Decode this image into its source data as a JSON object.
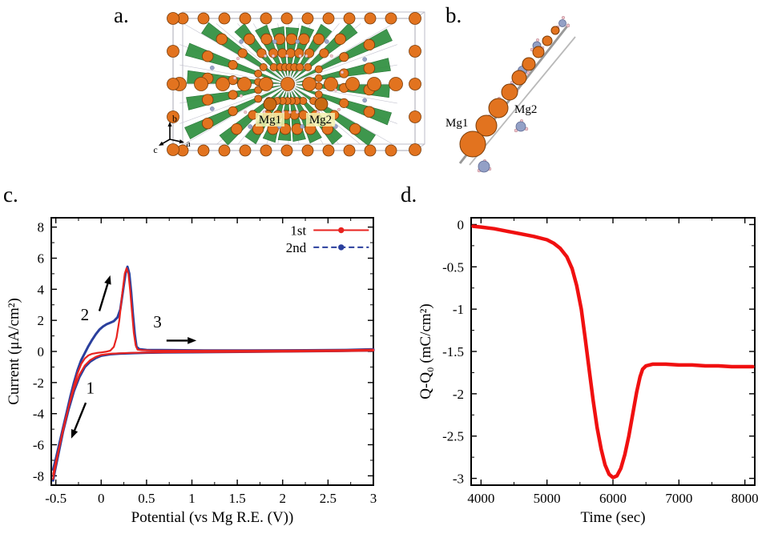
{
  "panels": {
    "a": {
      "label": "a.",
      "mg1": "Mg1",
      "mg2": "Mg2",
      "axes": {
        "b": "b",
        "c": "c",
        "a": "a"
      }
    },
    "b": {
      "label": "b.",
      "mg1": "Mg1",
      "mg2": "Mg2"
    },
    "c": {
      "label": "c."
    },
    "d": {
      "label": "d."
    }
  },
  "colors": {
    "first_cycle": "#e8231f",
    "second_cycle": "#2a3f9d",
    "charge_curve": "#f01010",
    "mg_sphere": "#e2731f",
    "polyhedra": "#2e8f3e"
  },
  "chart_data": [
    {
      "id": "cv",
      "type": "line",
      "title": "",
      "xlabel": "Potential (vs  Mg R.E. (V))",
      "ylabel": "Current (μA/cm²)",
      "xlim": [
        -0.55,
        3.0
      ],
      "ylim": [
        -8.6,
        8.6
      ],
      "xticks": {
        "values": [
          -0.5,
          0,
          0.5,
          1,
          1.5,
          2,
          2.5,
          3
        ],
        "labels": [
          "-0.5",
          "0",
          "0.5",
          "1",
          "1.5",
          "2",
          "2.5",
          "3"
        ]
      },
      "yticks": {
        "values": [
          -8,
          -6,
          -4,
          -2,
          0,
          2,
          4,
          6,
          8
        ],
        "labels": [
          "-8",
          "-6",
          "-4",
          "-2",
          "0",
          "2",
          "4",
          "6",
          "8"
        ]
      },
      "legend": [
        {
          "label": "1st",
          "color": "#e8231f",
          "dash": ""
        },
        {
          "label": "2nd",
          "color": "#2a3f9d",
          "dash": "7,4"
        }
      ],
      "annotations": [
        {
          "text": "1",
          "x": -0.12,
          "y": -2.7
        },
        {
          "text": "2",
          "x": -0.18,
          "y": 2.0
        },
        {
          "text": "3",
          "x": 0.62,
          "y": 1.55
        }
      ],
      "arrows": [
        {
          "x1": -0.17,
          "y1": -3.3,
          "x2": -0.33,
          "y2": -5.6
        },
        {
          "x1": -0.02,
          "y1": 2.6,
          "x2": 0.1,
          "y2": 4.9
        },
        {
          "x1": 0.72,
          "y1": 0.7,
          "x2": 1.05,
          "y2": 0.7
        }
      ],
      "series": [
        {
          "name": "2nd",
          "color": "#2a3f9d",
          "width": 3.0,
          "points": [
            [
              -0.53,
              -7.6
            ],
            [
              -0.5,
              -6.9
            ],
            [
              -0.46,
              -5.9
            ],
            [
              -0.42,
              -4.9
            ],
            [
              -0.38,
              -3.9
            ],
            [
              -0.34,
              -2.9
            ],
            [
              -0.3,
              -2.0
            ],
            [
              -0.26,
              -1.2
            ],
            [
              -0.22,
              -0.55
            ],
            [
              -0.18,
              -0.1
            ],
            [
              -0.14,
              0.35
            ],
            [
              -0.1,
              0.75
            ],
            [
              -0.06,
              1.1
            ],
            [
              -0.02,
              1.4
            ],
            [
              0.02,
              1.6
            ],
            [
              0.06,
              1.75
            ],
            [
              0.1,
              1.85
            ],
            [
              0.14,
              1.95
            ],
            [
              0.18,
              2.2
            ],
            [
              0.21,
              2.7
            ],
            [
              0.24,
              3.9
            ],
            [
              0.27,
              5.1
            ],
            [
              0.29,
              5.45
            ],
            [
              0.31,
              5.0
            ],
            [
              0.33,
              3.8
            ],
            [
              0.35,
              2.4
            ],
            [
              0.37,
              1.1
            ],
            [
              0.39,
              0.3
            ],
            [
              0.42,
              0.15
            ],
            [
              0.5,
              0.1
            ],
            [
              0.8,
              0.08
            ],
            [
              1.2,
              0.06
            ],
            [
              1.6,
              0.06
            ],
            [
              2.0,
              0.07
            ],
            [
              2.4,
              0.08
            ],
            [
              2.7,
              0.1
            ],
            [
              3.0,
              0.14
            ],
            [
              3.0,
              0.06
            ],
            [
              2.6,
              0.03
            ],
            [
              2.2,
              0.01
            ],
            [
              1.8,
              -0.01
            ],
            [
              1.4,
              -0.03
            ],
            [
              1.0,
              -0.05
            ],
            [
              0.7,
              -0.06
            ],
            [
              0.5,
              -0.08
            ],
            [
              0.35,
              -0.11
            ],
            [
              0.2,
              -0.14
            ],
            [
              0.1,
              -0.18
            ],
            [
              0.0,
              -0.28
            ],
            [
              -0.06,
              -0.42
            ],
            [
              -0.12,
              -0.65
            ],
            [
              -0.18,
              -1.0
            ],
            [
              -0.24,
              -1.65
            ],
            [
              -0.3,
              -2.55
            ],
            [
              -0.36,
              -3.75
            ],
            [
              -0.42,
              -5.15
            ],
            [
              -0.47,
              -6.55
            ],
            [
              -0.51,
              -7.7
            ],
            [
              -0.53,
              -8.3
            ]
          ]
        },
        {
          "name": "1st",
          "color": "#e8231f",
          "width": 2.2,
          "points": [
            [
              -0.53,
              -7.9
            ],
            [
              -0.5,
              -7.1
            ],
            [
              -0.46,
              -6.1
            ],
            [
              -0.42,
              -5.1
            ],
            [
              -0.38,
              -4.1
            ],
            [
              -0.34,
              -3.1
            ],
            [
              -0.3,
              -2.2
            ],
            [
              -0.26,
              -1.4
            ],
            [
              -0.22,
              -0.8
            ],
            [
              -0.18,
              -0.45
            ],
            [
              -0.14,
              -0.25
            ],
            [
              -0.1,
              -0.15
            ],
            [
              -0.05,
              -0.1
            ],
            [
              0.0,
              -0.06
            ],
            [
              0.05,
              -0.02
            ],
            [
              0.1,
              0.05
            ],
            [
              0.14,
              0.3
            ],
            [
              0.17,
              0.9
            ],
            [
              0.2,
              2.0
            ],
            [
              0.23,
              3.6
            ],
            [
              0.26,
              5.0
            ],
            [
              0.28,
              5.35
            ],
            [
              0.3,
              5.0
            ],
            [
              0.32,
              3.9
            ],
            [
              0.34,
              2.5
            ],
            [
              0.36,
              1.2
            ],
            [
              0.38,
              0.4
            ],
            [
              0.4,
              0.12
            ],
            [
              0.45,
              0.08
            ],
            [
              0.55,
              0.06
            ],
            [
              0.8,
              0.05
            ],
            [
              1.2,
              0.05
            ],
            [
              1.6,
              0.05
            ],
            [
              2.0,
              0.06
            ],
            [
              2.4,
              0.07
            ],
            [
              2.7,
              0.09
            ],
            [
              3.0,
              0.12
            ],
            [
              3.0,
              0.05
            ],
            [
              2.6,
              0.02
            ],
            [
              2.2,
              0.0
            ],
            [
              1.8,
              -0.02
            ],
            [
              1.4,
              -0.03
            ],
            [
              1.0,
              -0.04
            ],
            [
              0.7,
              -0.05
            ],
            [
              0.5,
              -0.07
            ],
            [
              0.35,
              -0.09
            ],
            [
              0.2,
              -0.12
            ],
            [
              0.1,
              -0.15
            ],
            [
              0.0,
              -0.22
            ],
            [
              -0.06,
              -0.35
            ],
            [
              -0.12,
              -0.55
            ],
            [
              -0.18,
              -0.9
            ],
            [
              -0.24,
              -1.5
            ],
            [
              -0.3,
              -2.4
            ],
            [
              -0.36,
              -3.6
            ],
            [
              -0.42,
              -5.0
            ],
            [
              -0.47,
              -6.4
            ],
            [
              -0.51,
              -7.6
            ],
            [
              -0.53,
              -8.2
            ]
          ]
        }
      ]
    },
    {
      "id": "charge",
      "type": "line",
      "title": "",
      "xlabel": "Time (sec)",
      "ylabel": "Q-Q₀  (mC/cm²)",
      "xlim": [
        3850,
        8150
      ],
      "ylim": [
        -3.08,
        0.08
      ],
      "xticks": {
        "values": [
          4000,
          5000,
          6000,
          7000,
          8000
        ],
        "labels": [
          "4000",
          "5000",
          "6000",
          "7000",
          "8000"
        ]
      },
      "yticks": {
        "values": [
          0,
          -0.5,
          -1,
          -1.5,
          -2,
          -2.5,
          -3
        ],
        "labels": [
          "0",
          "-0.5",
          "-1",
          "-1.5",
          "-2",
          "-2.5",
          "-3"
        ]
      },
      "series": [
        {
          "name": "charge",
          "color": "#f01010",
          "width": 4.5,
          "points": [
            [
              3880,
              -0.02
            ],
            [
              4000,
              -0.03
            ],
            [
              4200,
              -0.05
            ],
            [
              4400,
              -0.08
            ],
            [
              4600,
              -0.11
            ],
            [
              4800,
              -0.14
            ],
            [
              5000,
              -0.18
            ],
            [
              5100,
              -0.22
            ],
            [
              5200,
              -0.28
            ],
            [
              5300,
              -0.38
            ],
            [
              5380,
              -0.52
            ],
            [
              5450,
              -0.72
            ],
            [
              5520,
              -1.0
            ],
            [
              5580,
              -1.35
            ],
            [
              5640,
              -1.72
            ],
            [
              5700,
              -2.08
            ],
            [
              5760,
              -2.4
            ],
            [
              5820,
              -2.65
            ],
            [
              5880,
              -2.84
            ],
            [
              5940,
              -2.95
            ],
            [
              6000,
              -2.99
            ],
            [
              6060,
              -2.97
            ],
            [
              6120,
              -2.88
            ],
            [
              6180,
              -2.72
            ],
            [
              6240,
              -2.5
            ],
            [
              6300,
              -2.24
            ],
            [
              6360,
              -1.98
            ],
            [
              6410,
              -1.8
            ],
            [
              6450,
              -1.71
            ],
            [
              6500,
              -1.67
            ],
            [
              6600,
              -1.65
            ],
            [
              6800,
              -1.65
            ],
            [
              7000,
              -1.66
            ],
            [
              7200,
              -1.66
            ],
            [
              7400,
              -1.67
            ],
            [
              7600,
              -1.67
            ],
            [
              7800,
              -1.68
            ],
            [
              8000,
              -1.68
            ],
            [
              8120,
              -1.68
            ]
          ]
        }
      ]
    }
  ]
}
